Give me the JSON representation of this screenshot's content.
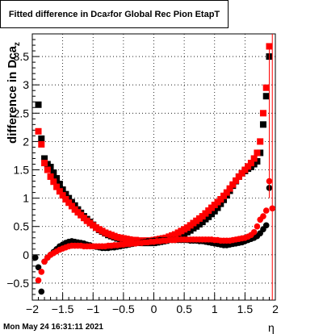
{
  "chart_data": {
    "type": "scatter",
    "title_pre": "Fitted difference in Dca",
    "title_sub": "z",
    "title_post": " for Global Rec Pion EtapT",
    "ylabel_pre": "difference in Dca",
    "ylabel_sub": "z",
    "xlabel": "η",
    "xlim": [
      -2,
      2
    ],
    "ylim": [
      -0.8,
      3.9
    ],
    "grid": true,
    "xticks": [
      "−2",
      "−1.5",
      "−1",
      "−0.5",
      "0",
      "0.5",
      "1",
      "1.5",
      "2"
    ],
    "xtick_values": [
      -2,
      -1.5,
      -1,
      -0.5,
      0,
      0.5,
      1,
      1.5,
      2
    ],
    "yticks": [
      "−0.5",
      "0",
      "0.5",
      "1",
      "1.5",
      "2",
      "2.5",
      "3",
      "3.5"
    ],
    "ytick_values": [
      -0.5,
      0,
      0.5,
      1,
      1.5,
      2,
      2.5,
      3,
      3.5
    ],
    "series": [
      {
        "marker": "square",
        "color": "#000000",
        "x": [
          -1.9,
          -1.85,
          -1.8,
          -1.75,
          -1.7,
          -1.65,
          -1.6,
          -1.55,
          -1.5,
          -1.45,
          -1.4,
          -1.35,
          -1.3,
          -1.25,
          -1.2,
          -1.15,
          -1.1,
          -1.05,
          -1.0,
          -0.95,
          -0.9,
          -0.85,
          -0.8,
          -0.75,
          -0.7,
          -0.65,
          -0.6,
          -0.55,
          -0.5,
          -0.45,
          -0.4,
          -0.35,
          -0.3,
          -0.25,
          -0.2,
          -0.15,
          -0.1,
          -0.05,
          0.0,
          0.05,
          0.1,
          0.15,
          0.2,
          0.25,
          0.3,
          0.35,
          0.4,
          0.45,
          0.5,
          0.55,
          0.6,
          0.65,
          0.7,
          0.75,
          0.8,
          0.85,
          0.9,
          0.95,
          1.0,
          1.05,
          1.1,
          1.15,
          1.2,
          1.25,
          1.3,
          1.35,
          1.4,
          1.45,
          1.5,
          1.55,
          1.6,
          1.65,
          1.7,
          1.75,
          1.8,
          1.85,
          1.9
        ],
        "y": [
          2.65,
          2.05,
          1.7,
          1.6,
          1.55,
          1.45,
          1.35,
          1.25,
          1.15,
          1.07,
          1.0,
          0.93,
          0.87,
          0.8,
          0.74,
          0.68,
          0.63,
          0.58,
          0.53,
          0.48,
          0.44,
          0.41,
          0.38,
          0.35,
          0.33,
          0.31,
          0.29,
          0.28,
          0.26,
          0.25,
          0.24,
          0.23,
          0.22,
          0.22,
          0.21,
          0.21,
          0.21,
          0.21,
          0.21,
          0.22,
          0.23,
          0.24,
          0.25,
          0.27,
          0.28,
          0.3,
          0.32,
          0.35,
          0.37,
          0.4,
          0.43,
          0.47,
          0.5,
          0.54,
          0.58,
          0.63,
          0.67,
          0.72,
          0.77,
          0.83,
          0.9,
          0.97,
          1.05,
          1.13,
          1.22,
          1.3,
          1.38,
          1.44,
          1.48,
          1.52,
          1.55,
          1.6,
          1.65,
          1.8,
          2.3,
          2.8,
          3.5
        ]
      },
      {
        "marker": "square",
        "color": "#ff0000",
        "x": [
          -1.9,
          -1.85,
          -1.8,
          -1.75,
          -1.7,
          -1.65,
          -1.6,
          -1.55,
          -1.5,
          -1.45,
          -1.4,
          -1.35,
          -1.3,
          -1.25,
          -1.2,
          -1.15,
          -1.1,
          -1.05,
          -1.0,
          -0.95,
          -0.9,
          -0.85,
          -0.8,
          -0.75,
          -0.7,
          -0.65,
          -0.6,
          -0.55,
          -0.5,
          -0.45,
          -0.4,
          -0.35,
          -0.3,
          -0.25,
          -0.2,
          -0.15,
          -0.1,
          -0.05,
          0.0,
          0.05,
          0.1,
          0.15,
          0.2,
          0.25,
          0.3,
          0.35,
          0.4,
          0.45,
          0.5,
          0.55,
          0.6,
          0.65,
          0.7,
          0.75,
          0.8,
          0.85,
          0.9,
          0.95,
          1.0,
          1.05,
          1.1,
          1.15,
          1.2,
          1.25,
          1.3,
          1.35,
          1.4,
          1.45,
          1.5,
          1.55,
          1.6,
          1.65,
          1.7,
          1.75,
          1.8,
          1.85,
          1.9
        ],
        "y": [
          2.18,
          1.95,
          1.62,
          1.5,
          1.38,
          1.29,
          1.2,
          1.12,
          1.05,
          0.98,
          0.92,
          0.86,
          0.8,
          0.75,
          0.7,
          0.65,
          0.6,
          0.56,
          0.52,
          0.48,
          0.45,
          0.42,
          0.39,
          0.37,
          0.35,
          0.33,
          0.31,
          0.3,
          0.29,
          0.28,
          0.27,
          0.26,
          0.26,
          0.25,
          0.25,
          0.25,
          0.25,
          0.25,
          0.26,
          0.27,
          0.28,
          0.29,
          0.3,
          0.32,
          0.34,
          0.36,
          0.39,
          0.42,
          0.45,
          0.48,
          0.52,
          0.56,
          0.6,
          0.64,
          0.68,
          0.73,
          0.78,
          0.83,
          0.88,
          0.93,
          0.98,
          1.04,
          1.1,
          1.17,
          1.24,
          1.31,
          1.38,
          1.44,
          1.5,
          1.56,
          1.62,
          1.7,
          1.8,
          2.0,
          2.5,
          2.95,
          3.68
        ]
      },
      {
        "marker": "circle",
        "color": "#000000",
        "x": [
          -1.95,
          -1.9,
          -1.85,
          -1.8,
          -1.75,
          -1.7,
          -1.65,
          -1.6,
          -1.55,
          -1.5,
          -1.45,
          -1.4,
          -1.35,
          -1.3,
          -1.25,
          -1.2,
          -1.15,
          -1.1,
          -1.05,
          -1.0,
          -0.95,
          -0.9,
          -0.85,
          -0.8,
          -0.75,
          -0.7,
          -0.65,
          -0.6,
          -0.55,
          -0.5,
          -0.45,
          -0.4,
          -0.35,
          -0.3,
          -0.25,
          -0.2,
          -0.15,
          -0.1,
          -0.05,
          0.0,
          0.05,
          0.1,
          0.15,
          0.2,
          0.25,
          0.3,
          0.35,
          0.4,
          0.45,
          0.5,
          0.55,
          0.6,
          0.65,
          0.7,
          0.75,
          0.8,
          0.85,
          0.9,
          0.95,
          1.0,
          1.05,
          1.1,
          1.15,
          1.2,
          1.25,
          1.3,
          1.35,
          1.4,
          1.45,
          1.5,
          1.55,
          1.6,
          1.65,
          1.7,
          1.75,
          1.8,
          1.85,
          1.9
        ],
        "y": [
          -0.05,
          -0.22,
          -0.65,
          -0.12,
          -0.05,
          0.0,
          0.05,
          0.1,
          0.15,
          0.18,
          0.21,
          0.23,
          0.24,
          0.23,
          0.22,
          0.21,
          0.2,
          0.18,
          0.17,
          0.15,
          0.14,
          0.13,
          0.12,
          0.12,
          0.12,
          0.13,
          0.13,
          0.14,
          0.15,
          0.16,
          0.17,
          0.18,
          0.19,
          0.2,
          0.21,
          0.22,
          0.23,
          0.24,
          0.24,
          0.25,
          0.25,
          0.26,
          0.26,
          0.26,
          0.26,
          0.26,
          0.26,
          0.26,
          0.26,
          0.26,
          0.26,
          0.25,
          0.25,
          0.25,
          0.24,
          0.24,
          0.23,
          0.22,
          0.21,
          0.2,
          0.19,
          0.18,
          0.17,
          0.17,
          0.18,
          0.19,
          0.2,
          0.21,
          0.22,
          0.24,
          0.26,
          0.28,
          0.3,
          0.33,
          0.38,
          0.45,
          0.52,
          1.18
        ]
      },
      {
        "marker": "circle",
        "color": "#ff0000",
        "x": [
          -1.9,
          -1.85,
          -1.8,
          -1.75,
          -1.7,
          -1.65,
          -1.6,
          -1.55,
          -1.5,
          -1.45,
          -1.4,
          -1.35,
          -1.3,
          -1.25,
          -1.2,
          -1.15,
          -1.1,
          -1.05,
          -1.0,
          -0.95,
          -0.9,
          -0.85,
          -0.8,
          -0.75,
          -0.7,
          -0.65,
          -0.6,
          -0.55,
          -0.5,
          -0.45,
          -0.4,
          -0.35,
          -0.3,
          -0.25,
          -0.2,
          -0.15,
          -0.1,
          -0.05,
          0.0,
          0.05,
          0.1,
          0.15,
          0.2,
          0.25,
          0.3,
          0.35,
          0.4,
          0.45,
          0.5,
          0.55,
          0.6,
          0.65,
          0.7,
          0.75,
          0.8,
          0.85,
          0.9,
          0.95,
          1.0,
          1.05,
          1.1,
          1.15,
          1.2,
          1.25,
          1.3,
          1.35,
          1.4,
          1.45,
          1.5,
          1.55,
          1.6,
          1.65,
          1.7,
          1.75,
          1.8,
          1.85,
          1.9,
          1.95
        ],
        "y": [
          -0.45,
          -0.3,
          -0.12,
          -0.05,
          0.0,
          0.03,
          0.06,
          0.09,
          0.11,
          0.13,
          0.15,
          0.16,
          0.16,
          0.16,
          0.16,
          0.15,
          0.15,
          0.15,
          0.15,
          0.15,
          0.15,
          0.15,
          0.15,
          0.16,
          0.16,
          0.17,
          0.17,
          0.18,
          0.18,
          0.19,
          0.19,
          0.2,
          0.2,
          0.21,
          0.21,
          0.22,
          0.22,
          0.23,
          0.23,
          0.24,
          0.24,
          0.25,
          0.25,
          0.26,
          0.26,
          0.26,
          0.27,
          0.27,
          0.27,
          0.27,
          0.27,
          0.27,
          0.27,
          0.27,
          0.27,
          0.27,
          0.27,
          0.27,
          0.26,
          0.26,
          0.25,
          0.25,
          0.25,
          0.25,
          0.26,
          0.27,
          0.28,
          0.29,
          0.3,
          0.32,
          0.35,
          0.4,
          0.5,
          0.62,
          0.68,
          0.78,
          1.3,
          0.82
        ]
      }
    ]
  },
  "timestamp": "Mon May 24 16:31:11 2021"
}
